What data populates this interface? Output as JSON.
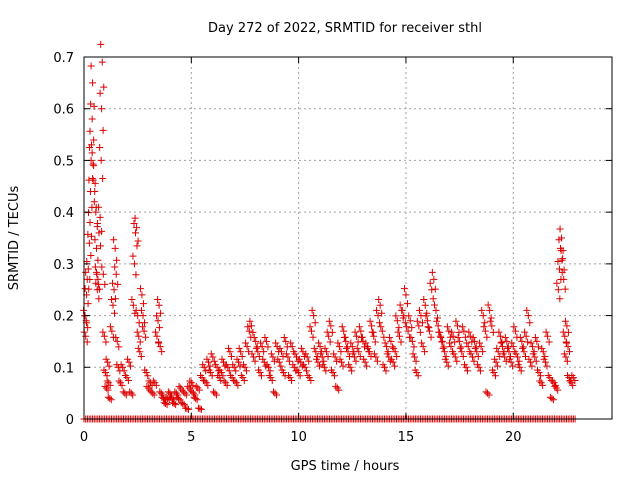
{
  "chart_data": {
    "type": "scatter",
    "title": "Day 272 of 2022, SRMTID for receiver sthl",
    "xlabel": "GPS time / hours",
    "ylabel": "SRMTID / TECUs",
    "xlim": [
      0,
      24.6
    ],
    "ylim": [
      0,
      0.7
    ],
    "x_ticks": [
      0,
      5,
      10,
      15,
      20
    ],
    "x_tick_labels": [
      "0",
      "5",
      "10",
      "15",
      "20"
    ],
    "y_ticks": [
      0,
      0.1,
      0.2,
      0.3,
      0.4,
      0.5,
      0.6,
      0.7
    ],
    "y_tick_labels": [
      "0",
      "0.1",
      "0.2",
      "0.3",
      "0.4",
      "0.5",
      "0.6",
      "0.7"
    ],
    "grid": true,
    "marker": "plus",
    "series": [
      {
        "name": "sthl",
        "color": "#dd0000",
        "points": [
          [
            0.05,
            0.2
          ],
          [
            0.08,
            0.16
          ],
          [
            0.1,
            0.19
          ],
          [
            0.12,
            0.24
          ],
          [
            0.15,
            0.27
          ],
          [
            0.2,
            0.29
          ],
          [
            0.25,
            0.34
          ],
          [
            0.28,
            0.38
          ],
          [
            0.3,
            0.44
          ],
          [
            0.33,
            0.5
          ],
          [
            0.35,
            0.53
          ],
          [
            0.38,
            0.58
          ],
          [
            0.4,
            0.65
          ],
          [
            0.45,
            0.49
          ],
          [
            0.5,
            0.44
          ],
          [
            0.55,
            0.4
          ],
          [
            0.58,
            0.33
          ],
          [
            0.6,
            0.28
          ],
          [
            0.62,
            0.25
          ],
          [
            0.65,
            0.27
          ],
          [
            0.7,
            0.36
          ],
          [
            0.75,
            0.39
          ],
          [
            0.8,
            0.5
          ],
          [
            0.82,
            0.6
          ],
          [
            0.85,
            0.69
          ],
          [
            0.9,
            0.28
          ],
          [
            0.95,
            0.16
          ],
          [
            1.0,
            0.09
          ],
          [
            1.05,
            0.06
          ],
          [
            1.1,
            0.11
          ],
          [
            1.15,
            0.07
          ],
          [
            1.2,
            0.04
          ],
          [
            1.3,
            0.17
          ],
          [
            1.35,
            0.22
          ],
          [
            1.4,
            0.25
          ],
          [
            1.45,
            0.33
          ],
          [
            1.5,
            0.28
          ],
          [
            1.55,
            0.15
          ],
          [
            1.6,
            0.1
          ],
          [
            1.7,
            0.07
          ],
          [
            1.8,
            0.1
          ],
          [
            1.9,
            0.05
          ],
          [
            2.0,
            0.08
          ],
          [
            2.1,
            0.11
          ],
          [
            2.2,
            0.05
          ],
          [
            2.3,
            0.22
          ],
          [
            2.35,
            0.3
          ],
          [
            2.4,
            0.36
          ],
          [
            2.45,
            0.37
          ],
          [
            2.5,
            0.2
          ],
          [
            2.55,
            0.16
          ],
          [
            2.6,
            0.13
          ],
          [
            2.7,
            0.24
          ],
          [
            2.75,
            0.2
          ],
          [
            2.8,
            0.17
          ],
          [
            2.9,
            0.09
          ],
          [
            3.0,
            0.06
          ],
          [
            3.1,
            0.07
          ],
          [
            3.2,
            0.05
          ],
          [
            3.3,
            0.07
          ],
          [
            3.4,
            0.16
          ],
          [
            3.45,
            0.19
          ],
          [
            3.5,
            0.22
          ],
          [
            3.55,
            0.14
          ],
          [
            3.6,
            0.05
          ],
          [
            3.7,
            0.04
          ],
          [
            3.8,
            0.03
          ],
          [
            3.9,
            0.04
          ],
          [
            4.0,
            0.05
          ],
          [
            4.1,
            0.04
          ],
          [
            4.2,
            0.03
          ],
          [
            4.3,
            0.05
          ],
          [
            4.4,
            0.04
          ],
          [
            4.5,
            0.06
          ],
          [
            4.6,
            0.03
          ],
          [
            4.7,
            0.05
          ],
          [
            4.8,
            0.02
          ],
          [
            4.9,
            0.06
          ],
          [
            5.0,
            0.07
          ],
          [
            5.1,
            0.05
          ],
          [
            5.2,
            0.04
          ],
          [
            5.3,
            0.06
          ],
          [
            5.4,
            0.02
          ],
          [
            5.5,
            0.08
          ],
          [
            5.6,
            0.1
          ],
          [
            5.7,
            0.07
          ],
          [
            5.8,
            0.11
          ],
          [
            5.9,
            0.09
          ],
          [
            6.0,
            0.12
          ],
          [
            6.1,
            0.05
          ],
          [
            6.2,
            0.1
          ],
          [
            6.3,
            0.08
          ],
          [
            6.4,
            0.09
          ],
          [
            6.5,
            0.11
          ],
          [
            6.6,
            0.07
          ],
          [
            6.7,
            0.1
          ],
          [
            6.8,
            0.13
          ],
          [
            6.9,
            0.08
          ],
          [
            7.0,
            0.1
          ],
          [
            7.1,
            0.07
          ],
          [
            7.2,
            0.11
          ],
          [
            7.3,
            0.13
          ],
          [
            7.4,
            0.08
          ],
          [
            7.5,
            0.1
          ],
          [
            7.6,
            0.14
          ],
          [
            7.7,
            0.17
          ],
          [
            7.8,
            0.18
          ],
          [
            7.9,
            0.12
          ],
          [
            8.0,
            0.15
          ],
          [
            8.1,
            0.13
          ],
          [
            8.2,
            0.09
          ],
          [
            8.3,
            0.14
          ],
          [
            8.4,
            0.11
          ],
          [
            8.5,
            0.15
          ],
          [
            8.6,
            0.1
          ],
          [
            8.7,
            0.08
          ],
          [
            8.8,
            0.12
          ],
          [
            8.9,
            0.05
          ],
          [
            9.0,
            0.14
          ],
          [
            9.1,
            0.11
          ],
          [
            9.2,
            0.13
          ],
          [
            9.3,
            0.09
          ],
          [
            9.4,
            0.15
          ],
          [
            9.5,
            0.12
          ],
          [
            9.6,
            0.08
          ],
          [
            9.7,
            0.14
          ],
          [
            9.8,
            0.1
          ],
          [
            9.9,
            0.12
          ],
          [
            10.0,
            0.09
          ],
          [
            10.1,
            0.11
          ],
          [
            10.2,
            0.13
          ],
          [
            10.3,
            0.1
          ],
          [
            10.4,
            0.12
          ],
          [
            10.5,
            0.08
          ],
          [
            10.6,
            0.17
          ],
          [
            10.7,
            0.2
          ],
          [
            10.8,
            0.13
          ],
          [
            10.9,
            0.11
          ],
          [
            11.0,
            0.14
          ],
          [
            11.1,
            0.12
          ],
          [
            11.2,
            0.1
          ],
          [
            11.3,
            0.13
          ],
          [
            11.4,
            0.16
          ],
          [
            11.5,
            0.18
          ],
          [
            11.6,
            0.09
          ],
          [
            11.7,
            0.12
          ],
          [
            11.8,
            0.06
          ],
          [
            11.9,
            0.14
          ],
          [
            12.0,
            0.11
          ],
          [
            12.1,
            0.17
          ],
          [
            12.2,
            0.15
          ],
          [
            12.3,
            0.13
          ],
          [
            12.4,
            0.1
          ],
          [
            12.5,
            0.14
          ],
          [
            12.6,
            0.12
          ],
          [
            12.7,
            0.16
          ],
          [
            12.8,
            0.13
          ],
          [
            12.9,
            0.17
          ],
          [
            13.0,
            0.15
          ],
          [
            13.1,
            0.11
          ],
          [
            13.2,
            0.14
          ],
          [
            13.3,
            0.13
          ],
          [
            13.4,
            0.18
          ],
          [
            13.5,
            0.16
          ],
          [
            13.6,
            0.12
          ],
          [
            13.7,
            0.2
          ],
          [
            13.8,
            0.22
          ],
          [
            13.9,
            0.17
          ],
          [
            14.0,
            0.1
          ],
          [
            14.1,
            0.14
          ],
          [
            14.2,
            0.12
          ],
          [
            14.3,
            0.15
          ],
          [
            14.4,
            0.11
          ],
          [
            14.5,
            0.13
          ],
          [
            14.6,
            0.19
          ],
          [
            14.7,
            0.16
          ],
          [
            14.8,
            0.21
          ],
          [
            14.9,
            0.2
          ],
          [
            15.0,
            0.24
          ],
          [
            15.1,
            0.17
          ],
          [
            15.2,
            0.19
          ],
          [
            15.3,
            0.15
          ],
          [
            15.4,
            0.12
          ],
          [
            15.5,
            0.09
          ],
          [
            15.6,
            0.18
          ],
          [
            15.7,
            0.2
          ],
          [
            15.8,
            0.14
          ],
          [
            15.9,
            0.22
          ],
          [
            16.0,
            0.19
          ],
          [
            16.1,
            0.17
          ],
          [
            16.2,
            0.25
          ],
          [
            16.3,
            0.27
          ],
          [
            16.4,
            0.21
          ],
          [
            16.5,
            0.18
          ],
          [
            16.6,
            0.16
          ],
          [
            16.7,
            0.15
          ],
          [
            16.8,
            0.13
          ],
          [
            16.9,
            0.11
          ],
          [
            17.0,
            0.17
          ],
          [
            17.1,
            0.14
          ],
          [
            17.2,
            0.16
          ],
          [
            17.3,
            0.12
          ],
          [
            17.4,
            0.18
          ],
          [
            17.5,
            0.15
          ],
          [
            17.6,
            0.13
          ],
          [
            17.7,
            0.17
          ],
          [
            17.8,
            0.1
          ],
          [
            17.9,
            0.14
          ],
          [
            18.0,
            0.16
          ],
          [
            18.1,
            0.12
          ],
          [
            18.2,
            0.15
          ],
          [
            18.3,
            0.13
          ],
          [
            18.4,
            0.1
          ],
          [
            18.5,
            0.14
          ],
          [
            18.6,
            0.2
          ],
          [
            18.7,
            0.17
          ],
          [
            18.8,
            0.05
          ],
          [
            18.9,
            0.21
          ],
          [
            19.0,
            0.18
          ],
          [
            19.1,
            0.09
          ],
          [
            19.2,
            0.11
          ],
          [
            19.3,
            0.13
          ],
          [
            19.4,
            0.16
          ],
          [
            19.5,
            0.14
          ],
          [
            19.6,
            0.12
          ],
          [
            19.7,
            0.15
          ],
          [
            19.8,
            0.13
          ],
          [
            19.9,
            0.11
          ],
          [
            20.0,
            0.14
          ],
          [
            20.1,
            0.17
          ],
          [
            20.2,
            0.12
          ],
          [
            20.3,
            0.1
          ],
          [
            20.4,
            0.15
          ],
          [
            20.5,
            0.13
          ],
          [
            20.6,
            0.16
          ],
          [
            20.7,
            0.2
          ],
          [
            20.8,
            0.11
          ],
          [
            20.9,
            0.14
          ],
          [
            21.0,
            0.12
          ],
          [
            21.1,
            0.15
          ],
          [
            21.2,
            0.09
          ],
          [
            21.3,
            0.07
          ],
          [
            21.4,
            0.13
          ],
          [
            21.5,
            0.11
          ],
          [
            21.6,
            0.16
          ],
          [
            21.7,
            0.08
          ],
          [
            21.8,
            0.04
          ],
          [
            21.9,
            0.07
          ],
          [
            22.0,
            0.06
          ],
          [
            22.1,
            0.25
          ],
          [
            22.15,
            0.29
          ],
          [
            22.2,
            0.33
          ],
          [
            22.25,
            0.35
          ],
          [
            22.3,
            0.31
          ],
          [
            22.35,
            0.27
          ],
          [
            22.4,
            0.16
          ],
          [
            22.45,
            0.12
          ],
          [
            22.5,
            0.18
          ],
          [
            22.55,
            0.14
          ],
          [
            22.6,
            0.08
          ],
          [
            22.7,
            0.07
          ],
          [
            22.8,
            0.08
          ]
        ]
      }
    ],
    "zero_value_range": [
      0,
      22.9
    ],
    "zero_value_step": 0.08
  }
}
